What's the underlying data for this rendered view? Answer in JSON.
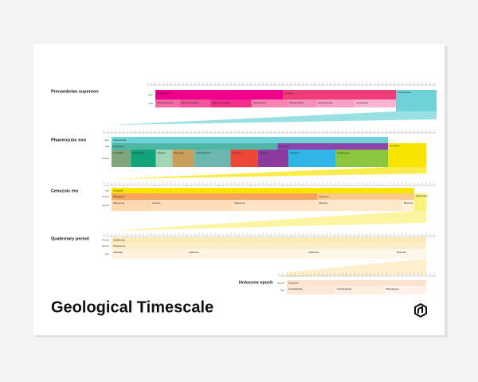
{
  "title": "Geological Timescale",
  "sections": [
    {
      "title": "Precambrian supereon",
      "rows": [
        {
          "label": "Eon",
          "segments": [
            {
              "name": "Proterozoic",
              "color": "#ec008c"
            },
            {
              "name": "Archean",
              "color": "#f03d7a"
            }
          ]
        },
        {
          "label": "Era",
          "segments": [
            {
              "name": "Neoproterozoic",
              "color": "#f06aa6"
            },
            {
              "name": "Mesoproterozoic",
              "color": "#f4549a"
            },
            {
              "name": "Paleoproterozoic",
              "color": "#f0308a"
            },
            {
              "name": "Neoarchean",
              "color": "#f683b0"
            },
            {
              "name": "Mesoarchean",
              "color": "#f690b8"
            },
            {
              "name": "Paleoarchean",
              "color": "#f7a1c4"
            },
            {
              "name": "Eoarchean",
              "color": "#f9b6d2"
            }
          ]
        }
      ],
      "side": {
        "name": "Phanerozoic",
        "color": "#6dd3d8"
      }
    },
    {
      "title": "Phanerozoic eon",
      "rows": [
        {
          "label": "Eon",
          "segments": [
            {
              "name": "Phanerozoic",
              "color": "#6dd3d8"
            }
          ]
        },
        {
          "label": "Era",
          "segments": [
            {
              "name": "Paleozoic",
              "color": "#4db6a4"
            },
            {
              "name": "Mesozoic",
              "color": "#8e44ad"
            }
          ]
        },
        {
          "label": "Period",
          "segments": [
            {
              "name": "Cambrian",
              "color": "#7ea67a"
            },
            {
              "name": "Ordovician",
              "color": "#12a37a"
            },
            {
              "name": "Silurian",
              "color": "#9ed6b6"
            },
            {
              "name": "Devonian",
              "color": "#c9a05a"
            },
            {
              "name": "Carboniferous",
              "color": "#6ab8b0"
            },
            {
              "name": "Permian",
              "color": "#ef4637"
            },
            {
              "name": "Triassic",
              "color": "#8b3a9e"
            },
            {
              "name": "Jurassic",
              "color": "#2fb6e7"
            },
            {
              "name": "Cretaceous",
              "color": "#8cc63f"
            }
          ]
        }
      ],
      "side": {
        "name": "Cenozoic",
        "color": "#f7e400"
      }
    },
    {
      "title": "Cenozoic era",
      "rows": [
        {
          "label": "Era",
          "segments": [
            {
              "name": "Cenozoic",
              "color": "#f7e400"
            }
          ]
        },
        {
          "label": "Period",
          "segments": [
            {
              "name": "Paleogene",
              "color": "#f7a35c"
            },
            {
              "name": "Neogene",
              "color": "#fbc98a"
            }
          ]
        },
        {
          "label": "Epoch",
          "segments": [
            {
              "name": "Paleocene",
              "color": "#fcd7b0"
            },
            {
              "name": "Eocene",
              "color": "#fddcb8"
            },
            {
              "name": "Oligocene",
              "color": "#fde3c4"
            },
            {
              "name": "Miocene",
              "color": "#fee8cc"
            },
            {
              "name": "Pliocene",
              "color": "#fef0da"
            }
          ]
        }
      ],
      "side": {
        "name": "Quaternary",
        "color": "#f9f17a"
      }
    },
    {
      "title": "Quaternary period",
      "rows": [
        {
          "label": "Period",
          "segments": [
            {
              "name": "Quaternary",
              "color": "#fde9b8"
            }
          ]
        },
        {
          "label": "Epoch",
          "segments": [
            {
              "name": "Pleistocene",
              "color": "#fdeecc"
            }
          ]
        },
        {
          "label": "Age",
          "segments": [
            {
              "name": "Gelasian",
              "color": "#fef2dc"
            },
            {
              "name": "Calabrian",
              "color": "#fef4e0"
            },
            {
              "name": "Chibanian",
              "color": "#fef6e6"
            },
            {
              "name": "Tarantian",
              "color": "#fef8ec"
            }
          ]
        }
      ]
    },
    {
      "title": "Holocene epoch",
      "rows": [
        {
          "label": "Epoch",
          "segments": [
            {
              "name": "Holocene",
              "color": "#fbe3d0"
            }
          ]
        },
        {
          "label": "Age",
          "segments": [
            {
              "name": "Greenlandian",
              "color": "#fce8d8"
            },
            {
              "name": "Northgrippian",
              "color": "#fdeee2"
            },
            {
              "name": "Meghalayan",
              "color": "#fef3ea"
            }
          ]
        }
      ]
    }
  ]
}
